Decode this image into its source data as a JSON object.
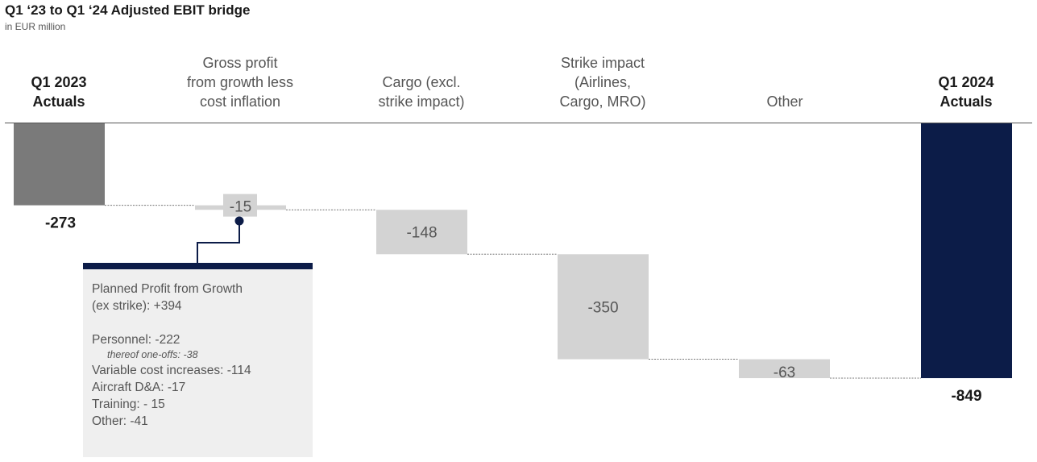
{
  "header": {
    "title": "Q1 ‘23 to Q1 ‘24 Adjusted EBIT bridge",
    "subtitle": "in EUR million"
  },
  "columns": [
    "Q1 2023\nActuals",
    "Gross profit\nfrom growth less\ncost inflation",
    "Cargo (excl.\nstrike impact)",
    "Strike impact\n(Airlines,\nCargo, MRO)",
    "Other",
    "Q1 2024\nActuals"
  ],
  "chart_data": {
    "type": "bar",
    "subtype": "waterfall",
    "title": "Q1 ‘23 to Q1 ‘24 Adjusted EBIT bridge",
    "unit": "in EUR million",
    "categories": [
      "Q1 2023 Actuals",
      "Gross profit from growth less cost inflation",
      "Cargo (excl. strike impact)",
      "Strike impact (Airlines, Cargo, MRO)",
      "Other",
      "Q1 2024 Actuals"
    ],
    "bars": [
      {
        "kind": "total",
        "value": -273,
        "label": "-273",
        "color": "#7a7a7a"
      },
      {
        "kind": "delta",
        "value": -15,
        "label": "-15",
        "color": "#d3d3d3"
      },
      {
        "kind": "delta",
        "value": -148,
        "label": "-148",
        "color": "#d3d3d3"
      },
      {
        "kind": "delta",
        "value": -350,
        "label": "-350",
        "color": "#d3d3d3"
      },
      {
        "kind": "delta",
        "value": -63,
        "label": "-63",
        "color": "#d3d3d3"
      },
      {
        "kind": "total",
        "value": -849,
        "label": "-849",
        "color": "#0c1c48"
      }
    ],
    "ylim": [
      -849,
      0
    ]
  },
  "callout": {
    "line1": "Planned Profit from Growth",
    "line2": "(ex strike): +394",
    "personnel": "Personnel: -222",
    "one_offs": "thereof one-offs: -38",
    "variable": "Variable cost increases: -114",
    "aircraft": "Aircraft D&A: -17",
    "training": "Training: - 15",
    "other": "Other: -41",
    "accent_color": "#0c1c48"
  }
}
